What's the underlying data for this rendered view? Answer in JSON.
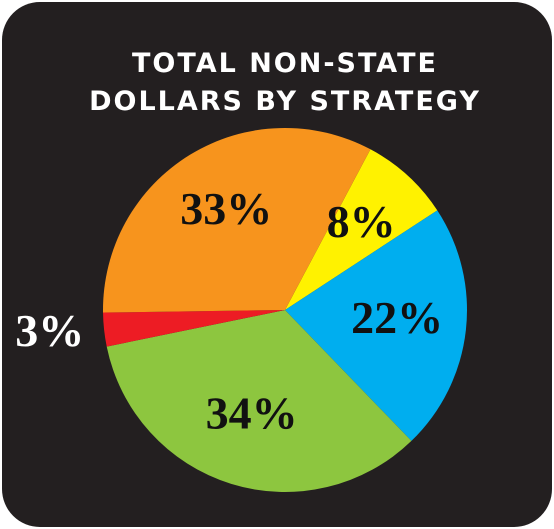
{
  "chart_data": {
    "type": "pie",
    "title": [
      "TOTAL NON-STATE",
      "DOLLARS BY STRATEGY"
    ],
    "values": [
      8,
      22,
      34,
      3,
      33
    ],
    "value_labels": [
      "8%",
      "22%",
      "34%",
      "3%",
      "33%"
    ],
    "colors": [
      "#fff200",
      "#00aeef",
      "#8dc63f",
      "#ed1c24",
      "#f7941d"
    ]
  }
}
